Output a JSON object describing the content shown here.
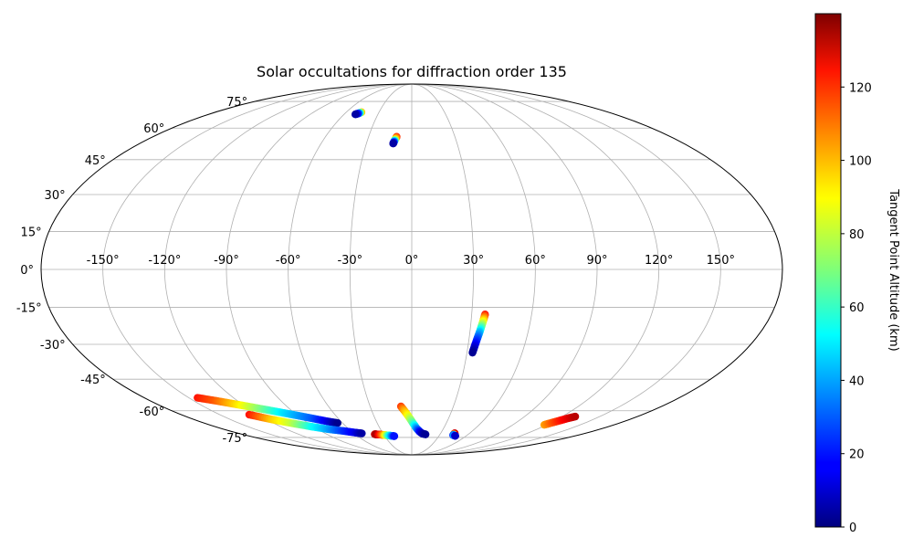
{
  "chart_data": {
    "type": "scatter",
    "projection": "mollweide",
    "title": "Solar occultations for diffraction order 135",
    "grid": true,
    "lon_ticks": [
      -150,
      -120,
      -90,
      -60,
      -30,
      0,
      30,
      60,
      90,
      120,
      150
    ],
    "lat_ticks": [
      -75,
      -60,
      -45,
      -30,
      -15,
      0,
      15,
      30,
      45,
      60,
      75
    ],
    "lon_tick_labels": [
      "-150°",
      "-120°",
      "-90°",
      "-60°",
      "-30°",
      "0°",
      "30°",
      "60°",
      "90°",
      "120°",
      "150°"
    ],
    "lat_tick_labels": [
      "-75°",
      "-60°",
      "-45°",
      "-30°",
      "-15°",
      "0°",
      "15°",
      "30°",
      "45°",
      "60°",
      "75°"
    ],
    "colorbar": {
      "label": "Tangent Point Altitude (km)",
      "colormap": "jet",
      "range": [
        0,
        140
      ],
      "ticks": [
        0,
        20,
        40,
        60,
        80,
        100,
        120
      ],
      "tick_labels": [
        "0",
        "20",
        "40",
        "60",
        "80",
        "100",
        "120"
      ]
    },
    "series": [
      {
        "points": [
          {
            "lon": -144.2,
            "lat": -53.6,
            "alt": 120
          },
          {
            "lon": -135.0,
            "lat": -55.0,
            "alt": 110
          },
          {
            "lon": -126.0,
            "lat": -56.5,
            "alt": 95
          },
          {
            "lon": -117.0,
            "lat": -58.0,
            "alt": 80
          },
          {
            "lon": -108.0,
            "lat": -59.5,
            "alt": 65
          },
          {
            "lon": -99.0,
            "lat": -61.0,
            "alt": 50
          },
          {
            "lon": -90.0,
            "lat": -62.5,
            "alt": 40
          },
          {
            "lon": -81.0,
            "lat": -64.0,
            "alt": 30
          },
          {
            "lon": -72.0,
            "lat": -65.5,
            "alt": 15
          },
          {
            "lon": -64.3,
            "lat": -66.5,
            "alt": 2
          }
        ]
      },
      {
        "points": [
          {
            "lon": -127.0,
            "lat": -62.0,
            "alt": 120
          },
          {
            "lon": -116.0,
            "lat": -64.5,
            "alt": 95
          },
          {
            "lon": -105.0,
            "lat": -66.5,
            "alt": 80
          },
          {
            "lon": -92.0,
            "lat": -68.5,
            "alt": 55
          },
          {
            "lon": -80.0,
            "lat": -70.0,
            "alt": 40
          },
          {
            "lon": -68.0,
            "lat": -71.0,
            "alt": 25
          },
          {
            "lon": -58.0,
            "lat": -72.0,
            "alt": 15
          },
          {
            "lon": -51.9,
            "lat": -72.5,
            "alt": 5
          }
        ]
      },
      {
        "points": [
          {
            "lon": -39.3,
            "lat": -73.0,
            "alt": 130
          },
          {
            "lon": -37.0,
            "lat": -73.1,
            "alt": 135
          },
          {
            "lon": -34.0,
            "lat": -73.2,
            "alt": 120
          },
          {
            "lon": -31.0,
            "lat": -73.4,
            "alt": 105
          },
          {
            "lon": -28.0,
            "lat": -73.6,
            "alt": 85
          },
          {
            "lon": -25.0,
            "lat": -73.8,
            "alt": 60
          },
          {
            "lon": -22.0,
            "lat": -74.0,
            "alt": 40
          },
          {
            "lon": -19.3,
            "lat": -74.2,
            "alt": 20
          }
        ]
      },
      {
        "points": [
          {
            "lon": -7.8,
            "lat": -57.8,
            "alt": 115
          },
          {
            "lon": -5.5,
            "lat": -60.0,
            "alt": 100
          },
          {
            "lon": -2.5,
            "lat": -63.0,
            "alt": 85
          },
          {
            "lon": 1.0,
            "lat": -66.5,
            "alt": 65
          },
          {
            "lon": 4.5,
            "lat": -69.5,
            "alt": 40
          },
          {
            "lon": 8.0,
            "lat": -71.5,
            "alt": 20
          },
          {
            "lon": 11.0,
            "lat": -72.6,
            "alt": 8
          },
          {
            "lon": 14.7,
            "lat": -73.1,
            "alt": 3
          }
        ]
      },
      {
        "points": [
          {
            "lon": 44.6,
            "lat": -72.4,
            "alt": 130
          },
          {
            "lon": 44.7,
            "lat": -73.0,
            "alt": 125
          },
          {
            "lon": 44.9,
            "lat": -73.6,
            "alt": 20
          },
          {
            "lon": 46.5,
            "lat": -73.8,
            "alt": 45
          },
          {
            "lon": 48.0,
            "lat": -74.0,
            "alt": 10
          }
        ]
      },
      {
        "points": [
          {
            "lon": 118.0,
            "lat": -67.5,
            "alt": 100
          },
          {
            "lon": 121.0,
            "lat": -66.3,
            "alt": 110
          },
          {
            "lon": 124.0,
            "lat": -65.2,
            "alt": 118
          },
          {
            "lon": 127.0,
            "lat": -64.0,
            "alt": 125
          },
          {
            "lon": 130.5,
            "lat": -63.0,
            "alt": 132
          }
        ]
      },
      {
        "points": [
          {
            "lon": 36.7,
            "lat": -17.8,
            "alt": 120
          },
          {
            "lon": 36.2,
            "lat": -20.0,
            "alt": 95
          },
          {
            "lon": 35.6,
            "lat": -22.5,
            "alt": 70
          },
          {
            "lon": 35.0,
            "lat": -25.0,
            "alt": 45
          },
          {
            "lon": 34.3,
            "lat": -27.5,
            "alt": 30
          },
          {
            "lon": 33.6,
            "lat": -30.5,
            "alt": 15
          },
          {
            "lon": 33.0,
            "lat": -33.5,
            "alt": 3
          }
        ]
      },
      {
        "points": [
          {
            "lon": -10.5,
            "lat": 55.7,
            "alt": 118
          },
          {
            "lon": -11.2,
            "lat": 54.5,
            "alt": 95
          },
          {
            "lon": -11.8,
            "lat": 53.4,
            "alt": 40
          },
          {
            "lon": -12.3,
            "lat": 52.4,
            "alt": 5
          }
        ]
      },
      {
        "points": [
          {
            "lon": -46.0,
            "lat": 68.5,
            "alt": 100
          },
          {
            "lon": -48.0,
            "lat": 67.8,
            "alt": 30
          },
          {
            "lon": -50.0,
            "lat": 67.3,
            "alt": 5
          }
        ]
      }
    ]
  }
}
